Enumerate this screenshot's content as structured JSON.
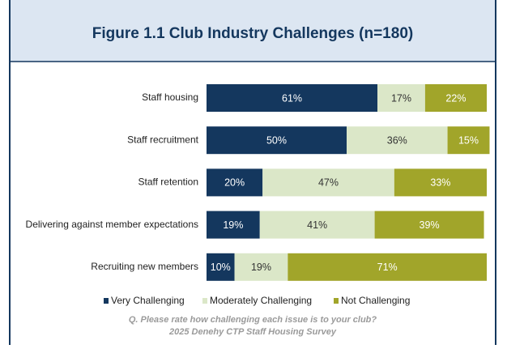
{
  "chart_data": {
    "type": "stacked_bar_horizontal",
    "title": "Figure 1.1 Club Industry Challenges (n=180)",
    "categories": [
      "Staff housing",
      "Staff recruitment",
      "Staff retention",
      "Delivering against member expectations",
      "Recruiting new members"
    ],
    "series": [
      {
        "name": "Very Challenging",
        "color": "#14375e",
        "values": [
          61,
          50,
          20,
          19,
          10
        ],
        "value_labels": [
          "61%",
          "50%",
          "20%",
          "19%",
          "10%"
        ]
      },
      {
        "name": "Moderately Challenging",
        "color": "#dbe7c8",
        "values": [
          17,
          36,
          47,
          41,
          19
        ],
        "value_labels": [
          "17%",
          "36%",
          "47%",
          "41%",
          "19%"
        ]
      },
      {
        "name": "Not Challenging",
        "color": "#a1a52a",
        "values": [
          22,
          15,
          33,
          39,
          71
        ],
        "value_labels": [
          "22%",
          "15%",
          "33%",
          "39%",
          "71%"
        ]
      }
    ],
    "xlim": [
      0,
      100
    ],
    "notes": [
      "Q. Please rate how challenging each issue is to your club?",
      "2025 Denehy CTP Staff Housing Survey"
    ]
  }
}
